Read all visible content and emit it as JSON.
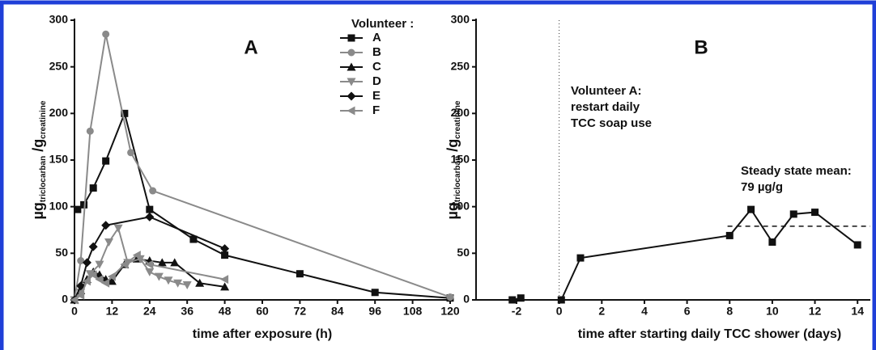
{
  "chart_data": [
    {
      "type": "line",
      "panel": "A",
      "xlabel": "time after exposure (h)",
      "ylabel": {
        "main1": "µg",
        "sub1": "triclocarban",
        "main2": " /g",
        "sub2": "creatinine"
      },
      "legend_title": "Volunteer :",
      "xlim": [
        0,
        120
      ],
      "xticks": [
        0,
        12,
        24,
        36,
        48,
        60,
        72,
        84,
        96,
        108,
        120
      ],
      "ylim": [
        0,
        300
      ],
      "yticks": [
        0,
        50,
        100,
        150,
        200,
        250,
        300
      ],
      "series": [
        {
          "name": "A",
          "color": "#111111",
          "marker": "square",
          "x": [
            1,
            3,
            6,
            10,
            16,
            24,
            38,
            48,
            72,
            96,
            120
          ],
          "values": [
            97,
            102,
            120,
            149,
            200,
            97,
            65,
            48,
            28,
            8,
            2
          ]
        },
        {
          "name": "B",
          "color": "#8a8a8a",
          "marker": "circle",
          "x": [
            0,
            2,
            5,
            10,
            18,
            25,
            120
          ],
          "values": [
            0,
            42,
            181,
            285,
            158,
            117,
            3
          ]
        },
        {
          "name": "C",
          "color": "#111111",
          "marker": "triangle",
          "x": [
            0,
            2,
            4,
            6,
            8,
            10,
            12,
            16,
            20,
            24,
            28,
            32,
            40,
            48
          ],
          "values": [
            0,
            10,
            22,
            30,
            27,
            22,
            20,
            38,
            44,
            42,
            40,
            40,
            18,
            14
          ]
        },
        {
          "name": "D",
          "color": "#8a8a8a",
          "marker": "triangle-down",
          "x": [
            0,
            2,
            5,
            8,
            11,
            14,
            17,
            21,
            24,
            27,
            30,
            33,
            36
          ],
          "values": [
            0,
            8,
            28,
            38,
            62,
            77,
            40,
            44,
            30,
            25,
            21,
            18,
            16
          ]
        },
        {
          "name": "E",
          "color": "#111111",
          "marker": "diamond",
          "x": [
            0,
            2,
            4,
            6,
            10,
            24,
            48
          ],
          "values": [
            0,
            15,
            40,
            57,
            80,
            89,
            55
          ]
        },
        {
          "name": "F",
          "color": "#8a8a8a",
          "marker": "triangle-left",
          "x": [
            0,
            2,
            4,
            6,
            8,
            10,
            12,
            16,
            20,
            24,
            48
          ],
          "values": [
            0,
            5,
            20,
            27,
            22,
            18,
            25,
            38,
            48,
            38,
            22
          ]
        }
      ]
    },
    {
      "type": "line",
      "panel": "B",
      "xlabel": "time after starting daily TCC shower (days)",
      "ylabel": {
        "main1": "µg",
        "sub1": "triclocarban",
        "main2": " /g",
        "sub2": "creatinine"
      },
      "annotations": [
        [
          "Volunteer A:",
          "restart daily",
          "TCC soap use"
        ],
        [
          "Steady state mean:",
          "79 µg/g"
        ]
      ],
      "xlim": [
        -3.9,
        14.6
      ],
      "xticks": [
        -2,
        0,
        2,
        4,
        6,
        8,
        10,
        12,
        14
      ],
      "ylim": [
        0,
        300
      ],
      "yticks": [
        0,
        50,
        100,
        150,
        200,
        250,
        300
      ],
      "vline": 0,
      "mean_line": 79,
      "mean_line_x": [
        7.9,
        14.6
      ],
      "series": [
        {
          "name": "A",
          "color": "#111111",
          "marker": "square",
          "x": [
            -2.2,
            -1.8,
            -1,
            0.1,
            1,
            8,
            9,
            10,
            11,
            12,
            14
          ],
          "values": [
            0,
            2,
            null,
            0,
            45,
            69,
            97,
            62,
            92,
            94,
            59
          ]
        }
      ]
    }
  ]
}
